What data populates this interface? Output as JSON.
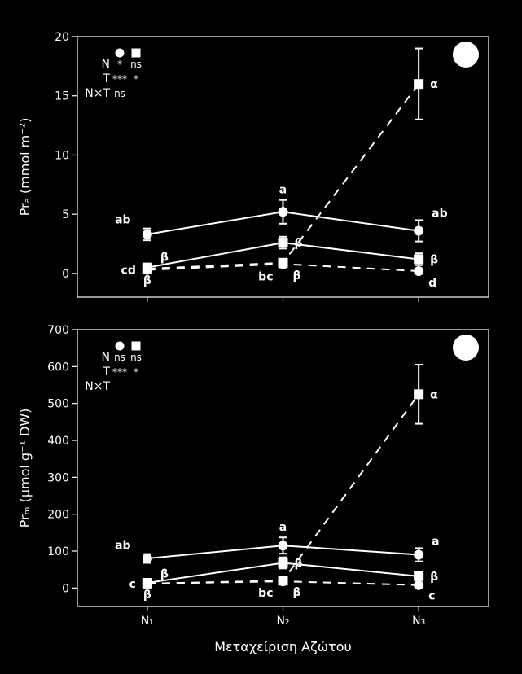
{
  "background_color": "#000000",
  "line_color": "#ffffff",
  "font_family": "DejaVu Sans, Arial, sans-serif",
  "axis_fontsize": 14,
  "label_fontsize": 16,
  "annotation_fontsize": 14,
  "x_axis": {
    "label": "Μεταχείριση Αζώτου",
    "categories": [
      "N₁",
      "N₂",
      "N₃"
    ]
  },
  "panelA": {
    "ylabel": "Prₐ (mmol m⁻²)",
    "ylim": [
      -2,
      20
    ],
    "ytick_step": 5,
    "yticks": [
      0,
      5,
      10,
      15,
      20
    ],
    "badge_color": "#ffffff",
    "series": {
      "circle_solid": {
        "marker": "circle",
        "line": "solid",
        "y": [
          3.3,
          5.2,
          3.6
        ],
        "err": [
          0.5,
          1.0,
          0.9
        ],
        "labels": [
          "ab",
          "a",
          "ab"
        ],
        "label_pos": [
          "above-left",
          "above",
          "above-right"
        ]
      },
      "circle_dash": {
        "marker": "circle",
        "line": "dash",
        "y": [
          0.3,
          0.8,
          0.2
        ],
        "err": [
          0.2,
          0.3,
          0.2
        ],
        "labels": [
          "cd",
          "bc",
          "d"
        ],
        "label_pos": [
          "left",
          "below-left",
          "below-right"
        ]
      },
      "square_solid": {
        "marker": "square",
        "line": "solid",
        "y": [
          0.5,
          2.6,
          1.2
        ],
        "err": [
          0.3,
          0.5,
          0.5
        ],
        "labels": [
          "β",
          "β",
          "β"
        ],
        "label_pos": [
          "above-right",
          "right",
          "right"
        ]
      },
      "square_dash": {
        "marker": "square",
        "line": "dash",
        "y": [
          0.4,
          0.9,
          16.0
        ],
        "err": [
          0.2,
          0.3,
          3.0
        ],
        "labels": [
          "β",
          "β",
          "α"
        ],
        "label_pos": [
          "below",
          "below-right",
          "right"
        ]
      }
    },
    "legend": {
      "rows": [
        "N",
        "T",
        "N×T"
      ],
      "circle_vals": [
        "*",
        "***",
        "ns"
      ],
      "square_vals": [
        "ns",
        "*",
        "-"
      ]
    }
  },
  "panelB": {
    "ylabel": "Prₘ (μmol g⁻¹ DW)",
    "ylim": [
      -50,
      700
    ],
    "ytick_step": 100,
    "yticks": [
      0,
      100,
      200,
      300,
      400,
      500,
      600,
      700
    ],
    "badge_color": "#ffffff",
    "series": {
      "circle_solid": {
        "marker": "circle",
        "line": "solid",
        "y": [
          80,
          115,
          90
        ],
        "err": [
          12,
          22,
          18
        ],
        "labels": [
          "ab",
          "a",
          "a"
        ],
        "label_pos": [
          "above-left",
          "above",
          "above-right"
        ]
      },
      "circle_dash": {
        "marker": "circle",
        "line": "dash",
        "y": [
          12,
          18,
          8
        ],
        "err": [
          5,
          6,
          4
        ],
        "labels": [
          "c",
          "bc",
          "c"
        ],
        "label_pos": [
          "left",
          "below-left",
          "below-right"
        ]
      },
      "square_solid": {
        "marker": "square",
        "line": "solid",
        "y": [
          14,
          68,
          32
        ],
        "err": [
          6,
          15,
          10
        ],
        "labels": [
          "β",
          "β",
          "β"
        ],
        "label_pos": [
          "above-right",
          "right",
          "right"
        ]
      },
      "square_dash": {
        "marker": "square",
        "line": "dash",
        "y": [
          12,
          20,
          525
        ],
        "err": [
          5,
          6,
          80
        ],
        "labels": [
          "β",
          "β",
          "α"
        ],
        "label_pos": [
          "below",
          "below-right",
          "right"
        ]
      }
    },
    "legend": {
      "rows": [
        "N",
        "T",
        "N×T"
      ],
      "circle_vals": [
        "ns",
        "***",
        "-"
      ],
      "square_vals": [
        "ns",
        "*",
        "-"
      ]
    }
  }
}
